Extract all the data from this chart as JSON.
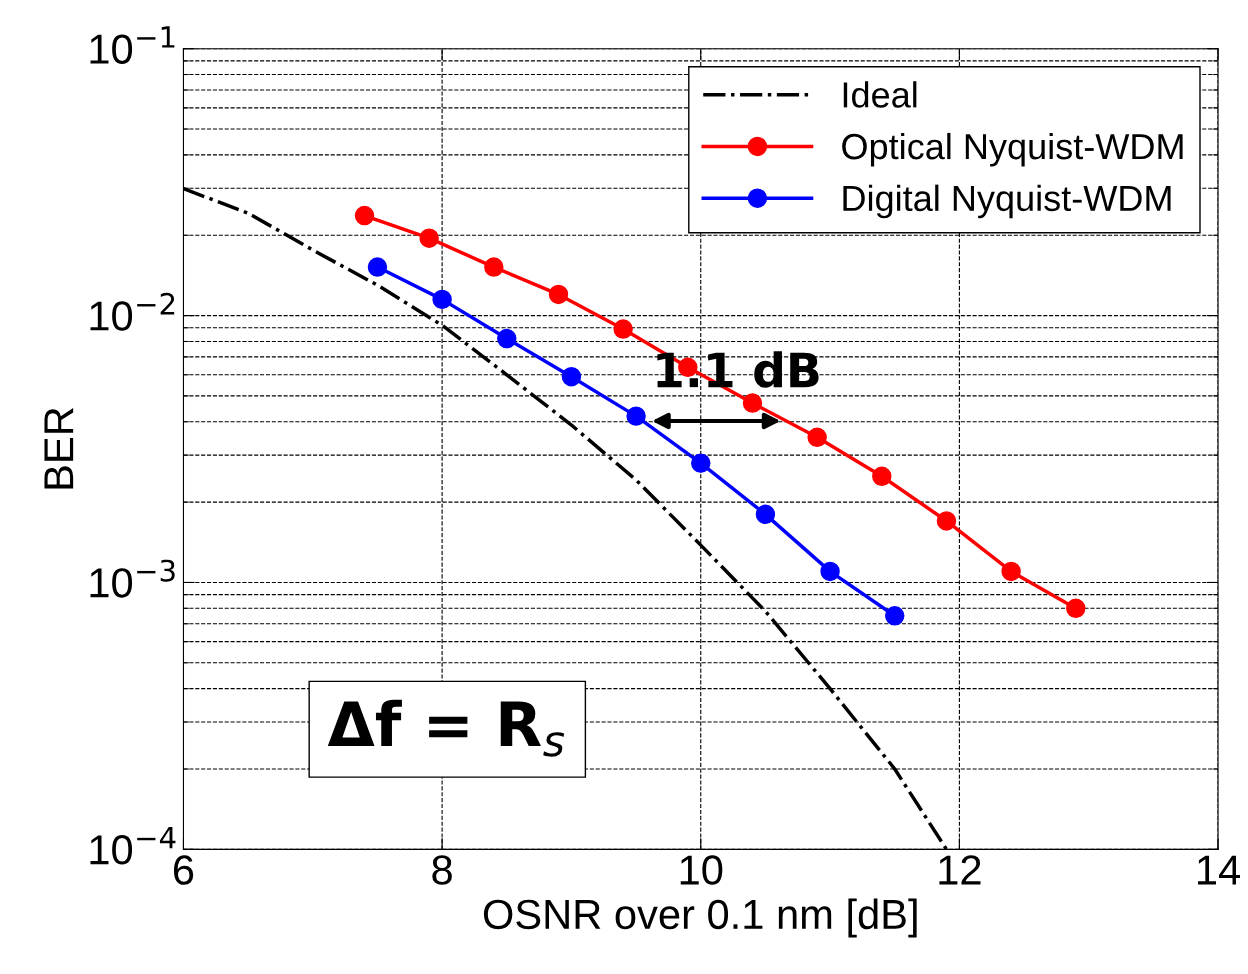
{
  "chart_data": {
    "type": "line",
    "xlabel": "OSNR over 0.1 nm [dB]",
    "ylabel": "BER",
    "log": "y",
    "grid": true,
    "legend": "top right",
    "marker": "circle",
    "xlim": [
      6,
      14
    ],
    "xticks": [
      6,
      8,
      10,
      12,
      14
    ],
    "ylim": [
      0.0001,
      0.1
    ],
    "yticks": [
      {
        "value": 0.0001,
        "label": "10$^{−4}$"
      },
      {
        "value": 0.001,
        "label": "10$^{−3}$"
      },
      {
        "value": 0.01,
        "label": "10$^{−2}$"
      },
      {
        "value": 0.1,
        "label": "10$^{−1}$"
      }
    ],
    "series": [
      {
        "name": "Ideal",
        "color": "#000000",
        "line_style": "dashdot",
        "marker": "none",
        "x": [
          6,
          6.5,
          7,
          7.5,
          8,
          8.5,
          9,
          9.5,
          10,
          10.5,
          11,
          11.5,
          11.9
        ],
        "values": [
          0.0299,
          0.0242,
          0.0176,
          0.013,
          0.0092,
          0.006,
          0.00389,
          0.00242,
          0.00138,
          0.00078,
          0.0004,
          0.0002,
          0.0001
        ]
      },
      {
        "name": "Optical Nyquist-WDM",
        "color": "#ff0000",
        "x": [
          7.4,
          7.9,
          8.4,
          8.9,
          9.4,
          9.9,
          10.4,
          10.9,
          11.4,
          11.9,
          12.4,
          12.9
        ],
        "values": [
          0.0237,
          0.0195,
          0.0152,
          0.012,
          0.0089,
          0.0064,
          0.0047,
          0.0035,
          0.0025,
          0.0017,
          0.0011,
          0.0008
        ]
      },
      {
        "name": "Digital Nyquist-WDM",
        "color": "#0000ff",
        "x": [
          7.5,
          8,
          8.5,
          9,
          9.5,
          10,
          10.5,
          11,
          11.5
        ],
        "values": [
          0.0152,
          0.0115,
          0.0082,
          0.0059,
          0.0042,
          0.0028,
          0.0018,
          0.0011,
          0.00075
        ]
      }
    ],
    "annotations": [
      "1.1 dB",
      "Δf = R$_{s}$"
    ]
  }
}
